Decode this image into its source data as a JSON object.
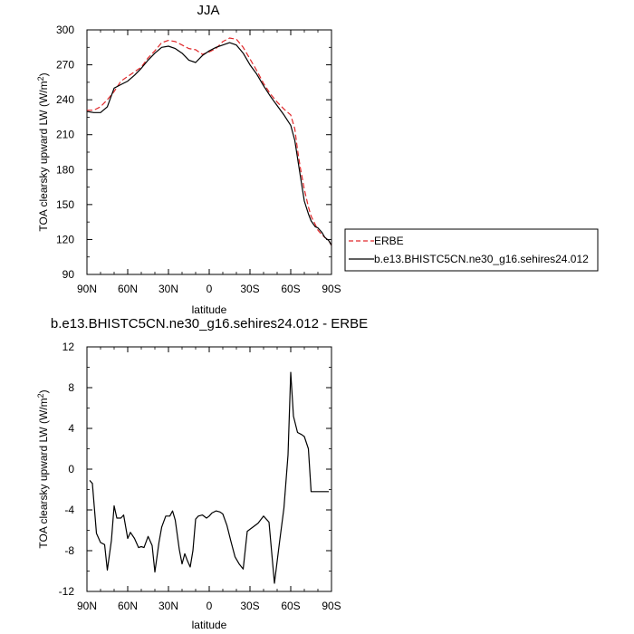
{
  "chart_data": [
    {
      "type": "line",
      "title": "JJA",
      "xlabel": "latitude",
      "ylabel": "TOA clearsky upward LW (W/m",
      "ylabel_sup": "2",
      "ylabel_end": ")",
      "xlim": [
        90,
        -90
      ],
      "ylim": [
        90,
        300
      ],
      "xticks": [
        90,
        60,
        30,
        0,
        -30,
        -60,
        -90
      ],
      "xtick_labels": [
        "90N",
        "60N",
        "30N",
        "0",
        "30S",
        "60S",
        "90S"
      ],
      "yticks": [
        90,
        120,
        150,
        180,
        210,
        240,
        270,
        300
      ],
      "ytick_labels": [
        "90",
        "120",
        "150",
        "180",
        "210",
        "240",
        "270",
        "300"
      ],
      "legend": {
        "placement": "right"
      },
      "series": [
        {
          "name": "ERBE",
          "color": "#e0282a",
          "dash": true,
          "x": [
            90,
            85,
            80,
            75,
            70,
            65,
            60,
            55,
            50,
            45,
            40,
            35,
            30,
            25,
            20,
            15,
            10,
            5,
            0,
            -5,
            -10,
            -15,
            -20,
            -25,
            -30,
            -35,
            -40,
            -45,
            -50,
            -55,
            -60,
            -63,
            -65,
            -67,
            -70,
            -73,
            -75,
            -78,
            -80,
            -83,
            -85,
            -88,
            -90
          ],
          "y": [
            231,
            231,
            234,
            240,
            247,
            256,
            260,
            264,
            268,
            276,
            282,
            289,
            291,
            290,
            287,
            284,
            283,
            279,
            281,
            284,
            290,
            293,
            292,
            285,
            275,
            265,
            254,
            245,
            238,
            232,
            227,
            215,
            197,
            182,
            163,
            148,
            140,
            133,
            128,
            124,
            122,
            119,
            115
          ]
        },
        {
          "name": "b.e13.BHISTC5CN.ne30_g16.sehires24.012",
          "color": "#000000",
          "dash": false,
          "x": [
            90,
            85,
            80,
            75,
            70,
            65,
            60,
            55,
            50,
            45,
            40,
            35,
            30,
            25,
            20,
            15,
            10,
            5,
            0,
            -5,
            -10,
            -15,
            -20,
            -25,
            -30,
            -35,
            -40,
            -45,
            -50,
            -55,
            -60,
            -63,
            -65,
            -67,
            -70,
            -73,
            -75,
            -78,
            -80,
            -83,
            -85,
            -88,
            -90
          ],
          "y": [
            230,
            229,
            229,
            234,
            250,
            253,
            256,
            261,
            267,
            274,
            280,
            285,
            286,
            284,
            280,
            274,
            272,
            278,
            282,
            285,
            287,
            289,
            287,
            280,
            270,
            262,
            252,
            243,
            235,
            227,
            218,
            205,
            190,
            175,
            153,
            142,
            136,
            131,
            130,
            126,
            122,
            119,
            115
          ]
        }
      ]
    },
    {
      "type": "line",
      "title": "b.e13.BHISTC5CN.ne30_g16.sehires24.012 - ERBE",
      "xlabel": "latitude",
      "ylabel": "TOA clearsky upward LW (W/m",
      "ylabel_sup": "2",
      "ylabel_end": ")",
      "xlim": [
        90,
        -90
      ],
      "ylim": [
        -12,
        12
      ],
      "xticks": [
        90,
        60,
        30,
        0,
        -30,
        -60,
        -90
      ],
      "xtick_labels": [
        "90N",
        "60N",
        "30N",
        "0",
        "30S",
        "60S",
        "90S"
      ],
      "yticks": [
        -12,
        -8,
        -4,
        0,
        4,
        8,
        12
      ],
      "ytick_labels": [
        "-12",
        "-8",
        "-4",
        "0",
        "4",
        "8",
        "12"
      ],
      "series": [
        {
          "color": "#000000",
          "x": [
            88,
            86,
            83,
            80,
            77,
            75,
            72,
            70,
            68,
            65,
            63,
            60,
            58,
            55,
            52,
            50,
            48,
            45,
            42,
            40,
            37,
            35,
            32,
            29,
            27,
            25,
            22,
            20,
            18,
            16,
            14,
            12,
            10,
            8,
            5,
            2,
            0,
            -2,
            -5,
            -8,
            -10,
            -13,
            -16,
            -19,
            -22,
            -25,
            -28,
            -30,
            -33,
            -36,
            -40,
            -44,
            -48,
            -52,
            -55,
            -58,
            -60,
            -62,
            -65,
            -68,
            -70,
            -73,
            -75,
            -78,
            -80,
            -83,
            -85,
            -88
          ],
          "y": [
            -1.1,
            -1.4,
            -6.3,
            -7.2,
            -7.4,
            -9.9,
            -7.0,
            -3.6,
            -4.8,
            -4.8,
            -4.5,
            -6.8,
            -6.2,
            -6.8,
            -7.7,
            -7.6,
            -7.7,
            -6.6,
            -7.5,
            -10.1,
            -7.2,
            -5.7,
            -4.6,
            -4.6,
            -4.1,
            -5.0,
            -7.9,
            -9.3,
            -8.3,
            -9.0,
            -9.6,
            -8.0,
            -4.9,
            -4.6,
            -4.5,
            -4.8,
            -4.6,
            -4.3,
            -4.1,
            -4.2,
            -4.4,
            -5.5,
            -7.1,
            -8.6,
            -9.3,
            -9.8,
            -6.1,
            -5.9,
            -5.6,
            -5.3,
            -4.6,
            -5.2,
            -11.2,
            -6.9,
            -3.8,
            1.4,
            9.5,
            5.2,
            3.6,
            3.4,
            3.2,
            2.0,
            -2.2,
            -2.2,
            -2.2,
            -2.2,
            -2.2,
            -2.2
          ]
        }
      ]
    }
  ]
}
